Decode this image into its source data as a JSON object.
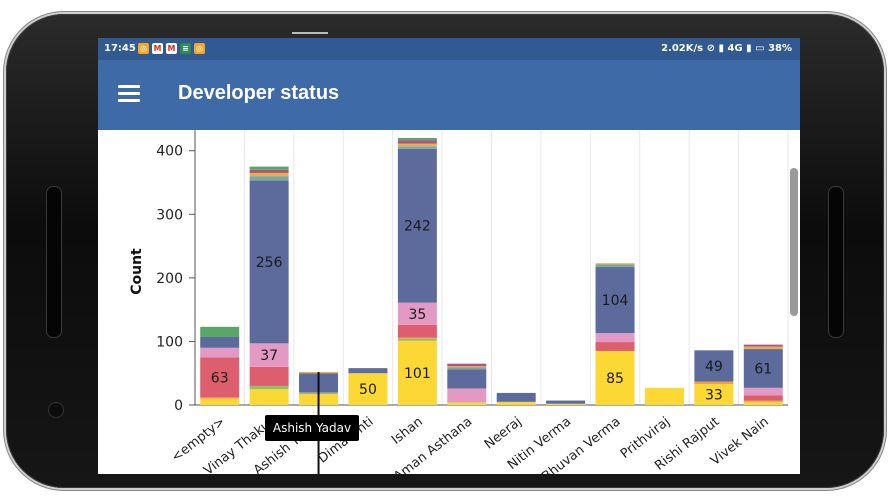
{
  "status_bar": {
    "time": "17:45",
    "network_speed": "2.02K/s",
    "network": "4G",
    "battery": "38%"
  },
  "app_bar": {
    "title": "Developer status",
    "menu_icon": "hamburger-menu-icon"
  },
  "tooltip": {
    "label": "Ashish Yadav"
  },
  "chart_data": {
    "type": "bar",
    "stacked": true,
    "title": "",
    "ylabel": "Count",
    "xlabel": "",
    "ylim": [
      0,
      420
    ],
    "yticks": [
      0,
      100,
      200,
      300,
      400
    ],
    "grid": true,
    "categories": [
      "<empty>",
      "Vinay Thakur",
      "Ashish Yadav",
      "Dima Onti",
      "Ishan",
      "Aman Asthana",
      "Neeraj",
      "Nitin Verma",
      "Bhuvan Verma",
      "Prithviraj",
      "Rishi Rajput",
      "Vivek Nain"
    ],
    "series": [
      {
        "name": "Yellow",
        "color": "#fbd834",
        "values": [
          10,
          25,
          17,
          50,
          101,
          4,
          5,
          2,
          85,
          27,
          33,
          5
        ]
      },
      {
        "name": "Green",
        "color": "#8cc36a",
        "values": [
          0,
          5,
          2,
          0,
          3,
          0,
          0,
          0,
          0,
          0,
          0,
          0
        ]
      },
      {
        "name": "Orange",
        "color": "#f39c41",
        "values": [
          2,
          0,
          0,
          0,
          2,
          0,
          0,
          0,
          0,
          0,
          4,
          2
        ]
      },
      {
        "name": "Red",
        "color": "#dd5e6c",
        "values": [
          63,
          30,
          1,
          0,
          20,
          0,
          0,
          0,
          14,
          0,
          0,
          8
        ]
      },
      {
        "name": "Pink",
        "color": "#e29ac4",
        "values": [
          15,
          37,
          0,
          0,
          35,
          22,
          0,
          0,
          14,
          0,
          0,
          12
        ]
      },
      {
        "name": "Blue",
        "color": "#5c6b9c",
        "values": [
          17,
          256,
          30,
          8,
          242,
          30,
          14,
          5,
          104,
          0,
          49,
          61
        ]
      },
      {
        "name": "Teal",
        "color": "#78a9a4",
        "values": [
          0,
          7,
          0,
          0,
          4,
          3,
          0,
          0,
          4,
          0,
          0,
          0
        ]
      },
      {
        "name": "Gold",
        "color": "#e8b04a",
        "values": [
          0,
          5,
          2,
          0,
          4,
          2,
          0,
          0,
          2,
          0,
          0,
          4
        ]
      },
      {
        "name": "Magenta",
        "color": "#b05580",
        "values": [
          0,
          5,
          0,
          0,
          5,
          4,
          0,
          0,
          0,
          0,
          0,
          3
        ]
      },
      {
        "name": "DarkGreen",
        "color": "#5aa56a",
        "values": [
          16,
          5,
          0,
          0,
          4,
          0,
          0,
          0,
          0,
          0,
          0,
          0
        ]
      }
    ],
    "data_labels": [
      {
        "category": "<empty>",
        "series": "Red",
        "label": "63"
      },
      {
        "category": "Vinay Thakur",
        "series": "Pink",
        "label": "37"
      },
      {
        "category": "Vinay Thakur",
        "series": "Blue",
        "label": "256"
      },
      {
        "category": "Dima Onti",
        "series": "Yellow",
        "label": "50"
      },
      {
        "category": "Ishan",
        "series": "Yellow",
        "label": "101"
      },
      {
        "category": "Ishan",
        "series": "Pink",
        "label": "35"
      },
      {
        "category": "Ishan",
        "series": "Blue",
        "label": "242"
      },
      {
        "category": "Bhuvan Verma",
        "series": "Yellow",
        "label": "85"
      },
      {
        "category": "Bhuvan Verma",
        "series": "Blue",
        "label": "104"
      },
      {
        "category": "Rishi Rajput",
        "series": "Yellow",
        "label": "33"
      },
      {
        "category": "Rishi Rajput",
        "series": "Blue",
        "label": "49"
      },
      {
        "category": "Vivek Nain",
        "series": "Blue",
        "label": "61"
      }
    ]
  }
}
